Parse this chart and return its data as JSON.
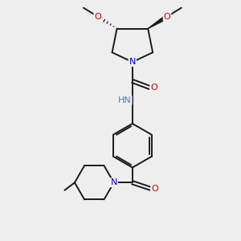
{
  "bg_color": "#eeeeee",
  "bond_color": "#1a1a1a",
  "N_color": "#0000cc",
  "O_color": "#cc0000",
  "NH_color": "#4682b4",
  "line_width": 1.4,
  "figsize": [
    3.0,
    3.0
  ],
  "dpi": 100,
  "xlim": [
    0,
    10
  ],
  "ylim": [
    0,
    10
  ]
}
